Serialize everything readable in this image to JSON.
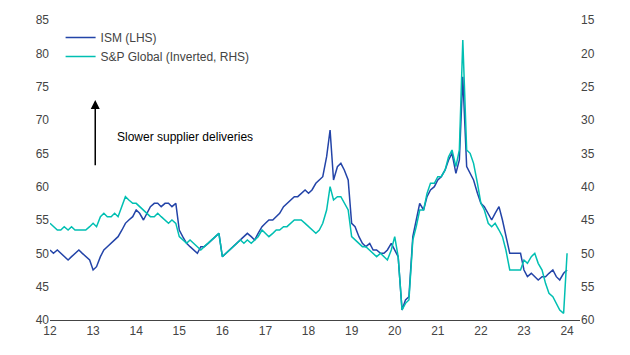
{
  "chart_data": {
    "type": "line",
    "x": [
      12.0,
      12.08,
      12.17,
      12.25,
      12.33,
      12.42,
      12.5,
      12.58,
      12.67,
      12.75,
      12.83,
      12.92,
      13.0,
      13.08,
      13.17,
      13.25,
      13.33,
      13.42,
      13.5,
      13.58,
      13.67,
      13.75,
      13.83,
      13.92,
      14.0,
      14.08,
      14.17,
      14.25,
      14.33,
      14.42,
      14.5,
      14.58,
      14.67,
      14.75,
      14.83,
      14.92,
      15.0,
      15.08,
      15.17,
      15.25,
      15.33,
      15.42,
      15.5,
      15.58,
      15.67,
      15.75,
      15.83,
      15.92,
      16.0,
      16.08,
      16.17,
      16.25,
      16.33,
      16.42,
      16.5,
      16.58,
      16.67,
      16.75,
      16.83,
      16.92,
      17.0,
      17.08,
      17.17,
      17.25,
      17.33,
      17.42,
      17.5,
      17.58,
      17.67,
      17.75,
      17.83,
      17.92,
      18.0,
      18.08,
      18.17,
      18.25,
      18.33,
      18.42,
      18.5,
      18.58,
      18.67,
      18.75,
      18.83,
      18.92,
      19.0,
      19.08,
      19.17,
      19.25,
      19.33,
      19.42,
      19.5,
      19.58,
      19.67,
      19.75,
      19.83,
      19.92,
      20.0,
      20.08,
      20.17,
      20.25,
      20.33,
      20.42,
      20.5,
      20.58,
      20.67,
      20.75,
      20.83,
      20.92,
      21.0,
      21.08,
      21.17,
      21.25,
      21.33,
      21.42,
      21.5,
      21.58,
      21.67,
      21.75,
      21.83,
      21.92,
      22.0,
      22.08,
      22.17,
      22.25,
      22.33,
      22.42,
      22.5,
      22.58,
      22.67,
      22.75,
      22.83,
      22.92,
      23.0,
      23.08,
      23.17,
      23.25,
      23.33,
      23.42,
      23.5,
      23.58,
      23.67,
      23.75,
      23.83,
      23.92,
      24.0
    ],
    "xlim": [
      12,
      24.3
    ],
    "xticks": [
      12,
      13,
      14,
      15,
      16,
      17,
      18,
      19,
      20,
      21,
      22,
      23,
      24
    ],
    "ylim": [
      40,
      85
    ],
    "yticks": [
      40,
      45,
      50,
      55,
      60,
      65,
      70,
      75,
      80,
      85
    ],
    "y2lim": [
      60,
      15
    ],
    "y2ticks": [
      60,
      55,
      50,
      45,
      40,
      35,
      30,
      25,
      20,
      15
    ],
    "grid": false,
    "legend": "upper left",
    "annotations": [
      {
        "text": "Slower supplier deliveries",
        "x": 13.5,
        "y": 67.5,
        "arrow": {
          "x": 13.05,
          "y_start": 63,
          "y_end": 73
        }
      }
    ],
    "series": [
      {
        "name": "ISM (LHS)",
        "color": "#2344a8",
        "values": [
          50.5,
          50.0,
          50.5,
          50.0,
          49.5,
          49.0,
          49.5,
          50.0,
          50.5,
          50.0,
          49.5,
          49.0,
          47.5,
          48.0,
          49.5,
          50.5,
          51.0,
          51.5,
          52.0,
          52.5,
          53.5,
          54.5,
          55.0,
          55.5,
          56.5,
          56.0,
          55.0,
          56.0,
          57.0,
          57.5,
          57.5,
          57.0,
          57.5,
          57.5,
          57.0,
          57.5,
          53.5,
          52.5,
          51.5,
          51.0,
          50.5,
          50.0,
          51.0,
          51.0,
          51.5,
          52.0,
          52.5,
          53.0,
          49.5,
          50.0,
          50.5,
          51.0,
          51.5,
          52.0,
          52.5,
          53.0,
          52.5,
          52.0,
          53.0,
          54.0,
          54.5,
          55.0,
          55.0,
          55.5,
          56.0,
          57.0,
          57.5,
          58.0,
          58.5,
          58.5,
          59.0,
          59.5,
          59.0,
          59.5,
          60.5,
          61.0,
          61.5,
          64.5,
          68.5,
          61.0,
          63.0,
          63.5,
          62.5,
          61.0,
          54.5,
          54.0,
          52.5,
          51.5,
          51.0,
          51.5,
          50.5,
          50.5,
          50.0,
          50.0,
          50.5,
          51.5,
          50.5,
          49.5,
          41.5,
          43.0,
          43.5,
          52.5,
          55.0,
          57.5,
          56.5,
          58.5,
          59.5,
          60.0,
          61.0,
          61.5,
          62.5,
          64.0,
          65.0,
          62.0,
          64.0,
          76.5,
          63.0,
          62.0,
          61.0,
          59.0,
          57.5,
          57.0,
          56.0,
          55.0,
          56.0,
          57.0,
          55.0,
          52.5,
          50.0,
          50.0,
          50.0,
          50.0,
          47.5,
          46.5,
          47.0,
          46.5,
          46.0,
          46.5,
          46.5,
          47.0,
          47.5,
          46.5,
          46.0,
          47.0,
          47.5
        ]
      },
      {
        "name": "S&P Global (Inverted, RHS)",
        "color": "#00bfb2",
        "axis": "y2",
        "values": [
          45.5,
          46.0,
          46.5,
          46.5,
          46.0,
          46.5,
          46.0,
          46.5,
          46.5,
          46.5,
          46.5,
          46.0,
          45.5,
          46.0,
          44.5,
          44.0,
          44.5,
          44.5,
          44.0,
          44.5,
          43.0,
          41.5,
          42.0,
          42.5,
          42.5,
          43.0,
          43.5,
          44.0,
          44.5,
          44.5,
          44.0,
          44.5,
          45.0,
          45.5,
          45.0,
          45.5,
          47.5,
          48.0,
          48.5,
          48.0,
          48.5,
          49.0,
          49.5,
          49.0,
          48.5,
          48.0,
          47.5,
          47.0,
          50.5,
          50.0,
          49.5,
          49.0,
          48.5,
          48.0,
          48.5,
          48.0,
          48.5,
          48.0,
          47.5,
          46.5,
          47.0,
          47.5,
          47.0,
          46.5,
          46.5,
          46.0,
          46.0,
          45.5,
          45.0,
          45.0,
          45.0,
          45.5,
          46.0,
          46.5,
          47.0,
          46.5,
          45.5,
          43.5,
          40.0,
          42.0,
          41.5,
          41.5,
          42.5,
          43.5,
          47.5,
          48.0,
          48.5,
          49.0,
          49.0,
          49.5,
          50.0,
          50.5,
          50.0,
          50.5,
          51.0,
          49.5,
          47.5,
          50.5,
          58.5,
          57.5,
          57.0,
          48.0,
          46.0,
          43.5,
          43.5,
          41.0,
          39.5,
          39.5,
          38.5,
          38.5,
          37.5,
          35.5,
          34.5,
          37.0,
          34.5,
          18.0,
          34.5,
          35.0,
          36.5,
          39.5,
          42.5,
          43.5,
          45.5,
          46.0,
          45.5,
          46.5,
          47.5,
          49.5,
          52.5,
          52.5,
          52.5,
          52.5,
          51.0,
          51.5,
          50.5,
          50.0,
          51.5,
          52.5,
          54.5,
          56.0,
          56.5,
          57.5,
          58.5,
          59.0,
          50.0
        ]
      }
    ]
  }
}
